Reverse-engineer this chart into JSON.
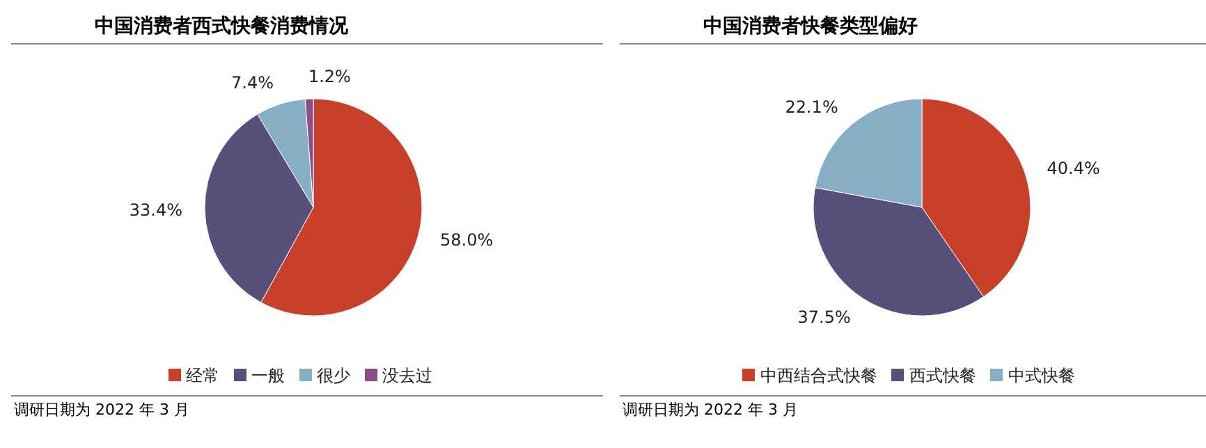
{
  "chart_data": [
    {
      "type": "pie",
      "title": "中国消费者西式快餐消费情况",
      "categories": [
        "经常",
        "一般",
        "很少",
        "没去过"
      ],
      "values": [
        58.0,
        33.4,
        7.4,
        1.2
      ],
      "value_labels": [
        "58.0%",
        "33.4%",
        "7.4%",
        "1.2%"
      ],
      "colors": [
        "#c8402a",
        "#58507a",
        "#86aec4",
        "#8b4e8a"
      ],
      "legend": "bottom",
      "annotations": [
        "调研日期为 2022 年 3 月"
      ]
    },
    {
      "type": "pie",
      "title": "中国消费者快餐类型偏好",
      "categories": [
        "中西结合式快餐",
        "西式快餐",
        "中式快餐"
      ],
      "values": [
        40.4,
        37.5,
        22.1
      ],
      "value_labels": [
        "40.4%",
        "37.5%",
        "22.1%"
      ],
      "colors": [
        "#c8402a",
        "#58507a",
        "#86aec4"
      ],
      "legend": "bottom",
      "annotations": [
        "调研日期为 2022 年 3 月"
      ]
    }
  ]
}
